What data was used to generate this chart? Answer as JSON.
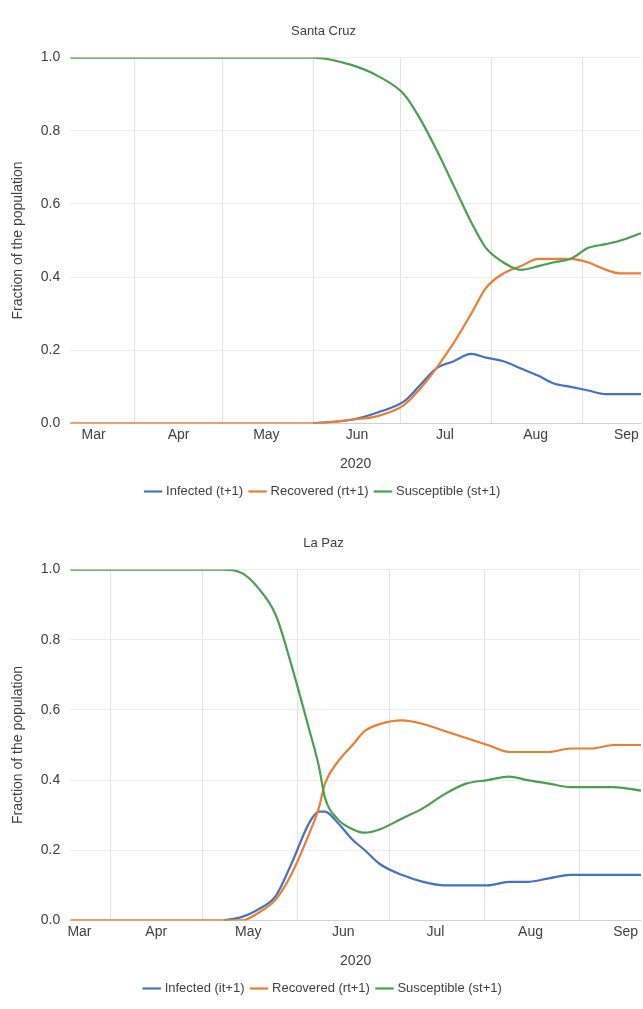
{
  "chart_data": [
    {
      "type": "line",
      "title": "Santa Cruz",
      "xlabel": "2020",
      "ylabel": "Fraction of the population",
      "x": [
        "2020-03-10",
        "2020-05-25",
        "2020-06-01",
        "2020-06-14",
        "2020-06-23",
        "2020-07-02",
        "2020-07-07",
        "2020-07-13",
        "2020-07-19",
        "2020-07-25",
        "2020-07-30",
        "2020-08-05",
        "2020-08-11",
        "2020-08-17",
        "2020-08-22",
        "2020-08-28",
        "2020-09-03",
        "2020-09-09",
        "2020-09-14",
        "2020-09-21"
      ],
      "series": [
        {
          "name": "Infected (t+1)",
          "color": "#4472c4",
          "values": [
            null,
            null,
            0,
            0.01,
            0.03,
            0.06,
            0.1,
            0.15,
            0.17,
            0.19,
            0.18,
            0.17,
            0.15,
            0.13,
            0.11,
            0.1,
            0.09,
            0.08,
            0.08,
            0.08
          ]
        },
        {
          "name": "Recovered (rt+1)",
          "color": "#ed7d31",
          "values": [
            0,
            0,
            0,
            0.01,
            0.02,
            0.05,
            0.09,
            0.15,
            0.22,
            0.3,
            0.37,
            0.41,
            0.43,
            0.45,
            0.45,
            0.45,
            0.44,
            0.42,
            0.41,
            0.41
          ]
        },
        {
          "name": "Susceptible (st+1)",
          "color": "#4a9f50",
          "values": [
            1,
            1,
            1,
            0.98,
            0.95,
            0.9,
            0.84,
            0.75,
            0.65,
            0.55,
            0.48,
            0.44,
            0.42,
            0.43,
            0.44,
            0.45,
            0.48,
            0.49,
            0.5,
            0.52
          ]
        }
      ],
      "xlim": [
        "2020-03-10",
        "2020-09-21"
      ],
      "xticks": [
        {
          "value": "2020-03-18",
          "label": "Mar"
        },
        {
          "value": "2020-04-01",
          "label": null
        },
        {
          "value": "2020-04-16",
          "label": "Apr"
        },
        {
          "value": "2020-05-01",
          "label": null
        },
        {
          "value": "2020-05-16",
          "label": "May"
        },
        {
          "value": "2020-06-01",
          "label": null
        },
        {
          "value": "2020-06-16",
          "label": "Jun"
        },
        {
          "value": "2020-07-01",
          "label": null
        },
        {
          "value": "2020-07-16",
          "label": "Jul"
        },
        {
          "value": "2020-08-01",
          "label": null
        },
        {
          "value": "2020-08-16",
          "label": "Aug"
        },
        {
          "value": "2020-09-01",
          "label": null
        },
        {
          "value": "2020-09-16",
          "label": "Sep"
        }
      ],
      "ylim": [
        0,
        1
      ],
      "yticks": [
        {
          "value": 0,
          "label": "0.0"
        },
        {
          "value": 0.2,
          "label": "0.2"
        },
        {
          "value": 0.4,
          "label": "0.4"
        },
        {
          "value": 0.6,
          "label": "0.6"
        },
        {
          "value": 0.8,
          "label": "0.8"
        },
        {
          "value": 1,
          "label": "1.0"
        }
      ],
      "grid": true,
      "legend": "bottom",
      "marker": "none",
      "line_style": "solid"
    },
    {
      "type": "line",
      "title": "La Paz",
      "xlabel": "2020",
      "ylabel": "Fraction of the population",
      "x": [
        "2020-03-19",
        "2020-04-30",
        "2020-05-08",
        "2020-05-14",
        "2020-05-19",
        "2020-05-25",
        "2020-05-30",
        "2020-06-05",
        "2020-06-08",
        "2020-06-10",
        "2020-06-14",
        "2020-06-19",
        "2020-06-23",
        "2020-06-28",
        "2020-07-05",
        "2020-07-12",
        "2020-07-19",
        "2020-07-26",
        "2020-08-02",
        "2020-08-09",
        "2020-08-15",
        "2020-08-22",
        "2020-08-29",
        "2020-09-05",
        "2020-09-12",
        "2020-09-21"
      ],
      "series": [
        {
          "name": "Infected (it+1)",
          "color": "#4472c4",
          "values": [
            null,
            null,
            0,
            0.01,
            0.03,
            0.07,
            0.16,
            0.28,
            0.31,
            0.31,
            0.28,
            0.23,
            0.2,
            0.16,
            0.13,
            0.11,
            0.1,
            0.1,
            0.1,
            0.11,
            0.11,
            0.12,
            0.13,
            0.13,
            0.13,
            0.13
          ]
        },
        {
          "name": "Recovered (rt+1)",
          "color": "#ed7d31",
          "values": [
            0,
            0,
            0,
            0,
            0.02,
            0.06,
            0.13,
            0.25,
            0.32,
            0.39,
            0.45,
            0.5,
            0.54,
            0.56,
            0.57,
            0.56,
            0.54,
            0.52,
            0.5,
            0.48,
            0.48,
            0.48,
            0.49,
            0.49,
            0.5,
            0.5
          ]
        },
        {
          "name": "Susceptible (st+1)",
          "color": "#4a9f50",
          "values": [
            1,
            1,
            1,
            0.99,
            0.95,
            0.87,
            0.73,
            0.54,
            0.44,
            0.35,
            0.29,
            0.26,
            0.25,
            0.26,
            0.29,
            0.32,
            0.36,
            0.39,
            0.4,
            0.41,
            0.4,
            0.39,
            0.38,
            0.38,
            0.38,
            0.37
          ]
        }
      ],
      "xlim": [
        "2020-03-19",
        "2020-09-21"
      ],
      "xticks": [
        {
          "value": "2020-03-22",
          "label": "Mar"
        },
        {
          "value": "2020-04-01",
          "label": null
        },
        {
          "value": "2020-04-16",
          "label": "Apr"
        },
        {
          "value": "2020-05-01",
          "label": null
        },
        {
          "value": "2020-05-16",
          "label": "May"
        },
        {
          "value": "2020-06-01",
          "label": null
        },
        {
          "value": "2020-06-16",
          "label": "Jun"
        },
        {
          "value": "2020-07-01",
          "label": null
        },
        {
          "value": "2020-07-16",
          "label": "Jul"
        },
        {
          "value": "2020-08-01",
          "label": null
        },
        {
          "value": "2020-08-16",
          "label": "Aug"
        },
        {
          "value": "2020-09-01",
          "label": null
        },
        {
          "value": "2020-09-16",
          "label": "Sep"
        }
      ],
      "ylim": [
        0,
        1
      ],
      "yticks": [
        {
          "value": 0,
          "label": "0.0"
        },
        {
          "value": 0.2,
          "label": "0.2"
        },
        {
          "value": 0.4,
          "label": "0.4"
        },
        {
          "value": 0.6,
          "label": "0.6"
        },
        {
          "value": 0.8,
          "label": "0.8"
        },
        {
          "value": 1,
          "label": "1.0"
        }
      ],
      "grid": true,
      "legend": "bottom",
      "marker": "none",
      "line_style": "solid"
    }
  ]
}
